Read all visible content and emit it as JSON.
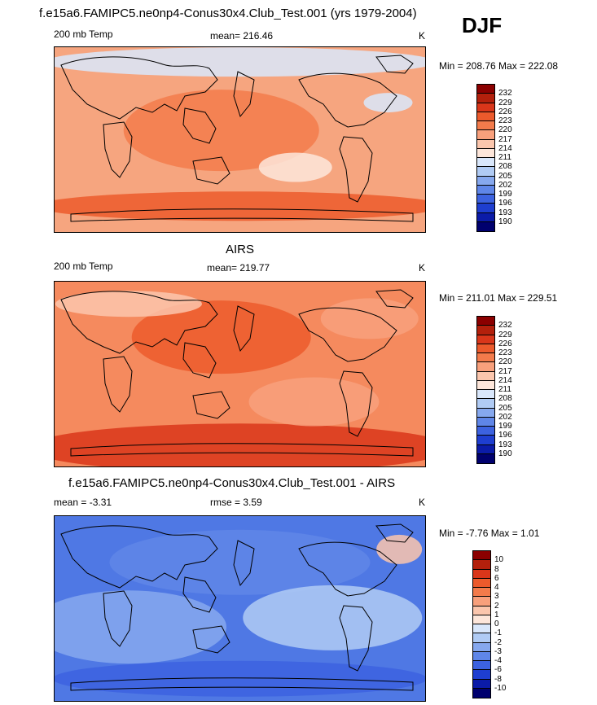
{
  "title": "f.e15a6.FAMIPC5.ne0np4-Conus30x4.Club_Test.001 (yrs 1979-2004)",
  "season": "DJF",
  "panels": [
    {
      "heading": "",
      "left_label": "200 mb Temp",
      "mean_label": "mean= 216.46",
      "units": "K",
      "minmax": "Min = 208.76 Max = 222.08",
      "colorbar_labels": [
        "232",
        "229",
        "226",
        "223",
        "220",
        "217",
        "214",
        "211",
        "208",
        "205",
        "202",
        "199",
        "196",
        "193",
        "190"
      ],
      "colorbar_colors": [
        "#8b0000",
        "#b3200c",
        "#d9361a",
        "#ec5a2c",
        "#f37b4b",
        "#f8a07c",
        "#fbc6ad",
        "#fde6da",
        "#d9e7fb",
        "#b0cbf4",
        "#86a8ee",
        "#5f86e8",
        "#3c62e0",
        "#1e3ed0",
        "#0b1ba8",
        "#00006e"
      ],
      "field_base": "#f6a57f"
    },
    {
      "heading": "AIRS",
      "left_label": "200 mb Temp",
      "mean_label": "mean= 219.77",
      "units": "K",
      "minmax": "Min = 211.01 Max = 229.51",
      "colorbar_labels": [
        "232",
        "229",
        "226",
        "223",
        "220",
        "217",
        "214",
        "211",
        "208",
        "205",
        "202",
        "199",
        "196",
        "193",
        "190"
      ],
      "colorbar_colors": [
        "#8b0000",
        "#b3200c",
        "#d9361a",
        "#ec5a2c",
        "#f37b4b",
        "#f8a07c",
        "#fbc6ad",
        "#fde6da",
        "#d9e7fb",
        "#b0cbf4",
        "#86a8ee",
        "#5f86e8",
        "#3c62e0",
        "#1e3ed0",
        "#0b1ba8",
        "#00006e"
      ],
      "field_base": "#f58a5e"
    },
    {
      "heading": "f.e15a6.FAMIPC5.ne0np4-Conus30x4.Club_Test.001 - AIRS",
      "left_label": "mean =  -3.31",
      "mean_label": "rmse =   3.59",
      "units": "K",
      "minmax": "Min =  -7.76 Max =   1.01",
      "colorbar_labels": [
        "10",
        "8",
        "6",
        "4",
        "3",
        "2",
        "1",
        "0",
        "-1",
        "-2",
        "-3",
        "-4",
        "-6",
        "-8",
        "-10"
      ],
      "colorbar_colors": [
        "#8b0000",
        "#b3200c",
        "#d9361a",
        "#ec5a2c",
        "#f37b4b",
        "#f8a07c",
        "#fbc6ad",
        "#fde6da",
        "#d9e7fb",
        "#b0cbf4",
        "#86a8ee",
        "#5f86e8",
        "#3c62e0",
        "#1e3ed0",
        "#0b1ba8",
        "#00006e"
      ],
      "field_base": "#4f78e4"
    }
  ],
  "chart_data": [
    {
      "type": "heatmap",
      "title": "f.e15a6.FAMIPC5.ne0np4-Conus30x4.Club_Test.001 (yrs 1979-2004)",
      "variable": "200 mb Temp",
      "units": "K",
      "season": "DJF",
      "mean": 216.46,
      "min": 208.76,
      "max": 222.08,
      "contour_levels": [
        190,
        193,
        196,
        199,
        202,
        205,
        208,
        211,
        214,
        217,
        220,
        223,
        226,
        229,
        232
      ]
    },
    {
      "type": "heatmap",
      "title": "AIRS",
      "variable": "200 mb Temp",
      "units": "K",
      "mean": 219.77,
      "min": 211.01,
      "max": 229.51,
      "contour_levels": [
        190,
        193,
        196,
        199,
        202,
        205,
        208,
        211,
        214,
        217,
        220,
        223,
        226,
        229,
        232
      ]
    },
    {
      "type": "heatmap",
      "title": "f.e15a6.FAMIPC5.ne0np4-Conus30x4.Club_Test.001 - AIRS",
      "units": "K",
      "mean": -3.31,
      "rmse": 3.59,
      "min": -7.76,
      "max": 1.01,
      "contour_levels": [
        -10,
        -8,
        -6,
        -4,
        -3,
        -2,
        -1,
        0,
        1,
        2,
        3,
        4,
        6,
        8,
        10
      ]
    }
  ]
}
